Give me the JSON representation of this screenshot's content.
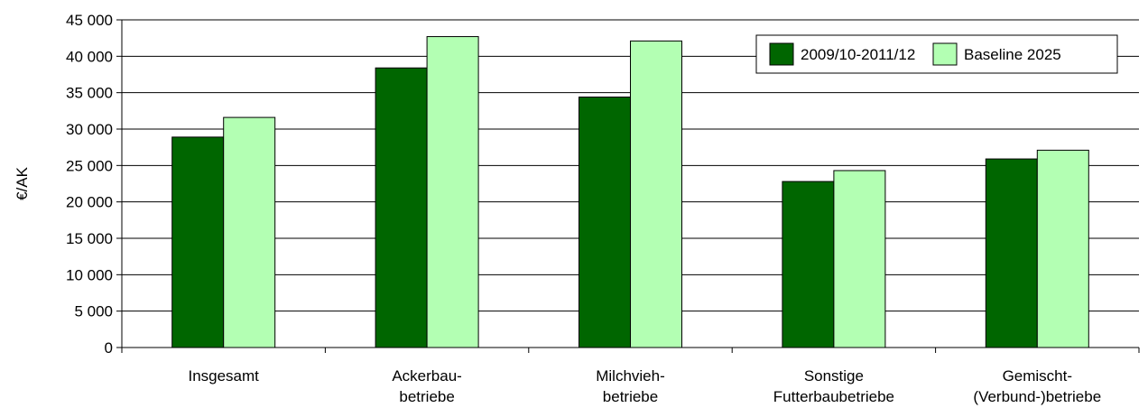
{
  "chart_data": {
    "type": "bar",
    "title": "",
    "xlabel": "",
    "ylabel": "€/AK",
    "ylim": [
      0,
      45000
    ],
    "yticks": [
      0,
      5000,
      10000,
      15000,
      20000,
      25000,
      30000,
      35000,
      40000,
      45000
    ],
    "ytick_labels": [
      "0",
      "5 000",
      "10 000",
      "15 000",
      "20 000",
      "25 000",
      "30 000",
      "35 000",
      "40 000",
      "45 000"
    ],
    "grid": true,
    "legend_position": "top-right",
    "categories": [
      [
        "Insgesamt"
      ],
      [
        "Ackerbau-",
        "betriebe"
      ],
      [
        "Milchvieh-",
        "betriebe"
      ],
      [
        "Sonstige",
        "Futterbaubetriebe"
      ],
      [
        "Gemischt-",
        "(Verbund-)betriebe"
      ]
    ],
    "series": [
      {
        "name": "2009/10-2011/12",
        "color": "#006600",
        "values": [
          28900,
          38400,
          34400,
          22800,
          25900
        ]
      },
      {
        "name": "Baseline 2025",
        "color": "#B3FFB3",
        "values": [
          31600,
          42700,
          42100,
          24300,
          27100
        ]
      }
    ]
  }
}
